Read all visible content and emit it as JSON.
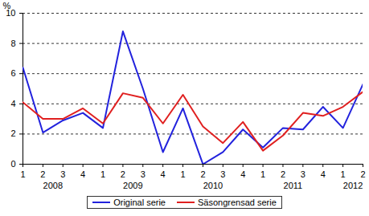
{
  "chart_data": {
    "type": "line",
    "y_label": "%",
    "categories": [
      "1",
      "2",
      "3",
      "4",
      "1",
      "2",
      "3",
      "4",
      "1",
      "2",
      "3",
      "4",
      "1",
      "2",
      "3",
      "4",
      "1",
      "2"
    ],
    "x_group_labels": [
      "2008",
      "2008",
      "2008",
      "2008",
      "2009",
      "2009",
      "2009",
      "2009",
      "2010",
      "2010",
      "2010",
      "2010",
      "2011",
      "2011",
      "2011",
      "2011",
      "2012",
      "2012"
    ],
    "series": [
      {
        "name": "Original serie",
        "color": "#2222dd",
        "values": [
          6.4,
          2.1,
          2.9,
          3.4,
          2.4,
          8.8,
          5.0,
          0.8,
          3.7,
          0.0,
          0.8,
          2.3,
          1.1,
          2.4,
          2.3,
          3.8,
          2.4,
          5.3
        ]
      },
      {
        "name": "Säsongrensad serie",
        "color": "#e02020",
        "values": [
          4.1,
          3.0,
          3.0,
          3.7,
          2.7,
          4.7,
          4.4,
          2.7,
          4.6,
          2.5,
          1.4,
          2.8,
          0.9,
          1.9,
          3.4,
          3.2,
          3.8,
          4.8
        ]
      }
    ],
    "ylim": [
      0,
      10
    ],
    "yticks": [
      0,
      2,
      4,
      6,
      8,
      10
    ],
    "grid": true,
    "legend": "bottom"
  }
}
